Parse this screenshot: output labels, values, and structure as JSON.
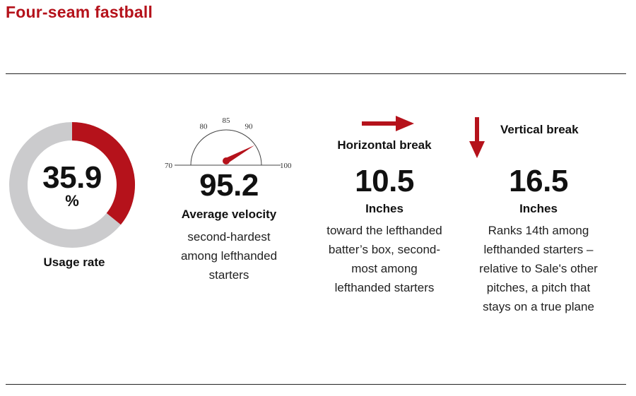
{
  "title": "Four-seam fastball",
  "colors": {
    "accent": "#b5121b",
    "track": "#cbcbcd",
    "text": "#111111"
  },
  "chart_data": [
    {
      "type": "donut",
      "value": 35.9,
      "value_text": "35.9",
      "unit": "%",
      "label": "Usage rate",
      "range": [
        0,
        100
      ]
    },
    {
      "type": "gauge",
      "value": 95.2,
      "value_text": "95.2",
      "range": [
        70,
        100
      ],
      "ticks": [
        {
          "value": 70,
          "label": "70"
        },
        {
          "value": 80,
          "label": "80"
        },
        {
          "value": 85,
          "label": "85"
        },
        {
          "value": 90,
          "label": "90"
        },
        {
          "value": 100,
          "label": "100"
        }
      ],
      "label": "Average velocity",
      "description": [
        "second-hardest",
        "among lefthanded",
        "starters"
      ]
    },
    {
      "type": "stat",
      "direction": "horizontal",
      "value_text": "10.5",
      "label": "Horizontal break",
      "unit": "Inches",
      "description": [
        "toward the lefthanded",
        "batter’s box, second-",
        "most among",
        "lefthanded starters"
      ]
    },
    {
      "type": "stat",
      "direction": "vertical",
      "value_text": "16.5",
      "label": "Vertical break",
      "unit": "Inches",
      "description": [
        "Ranks 14th among",
        "lefthanded starters –",
        "relative to Sale's other",
        "pitches, a pitch that",
        "stays on a true plane"
      ]
    }
  ]
}
